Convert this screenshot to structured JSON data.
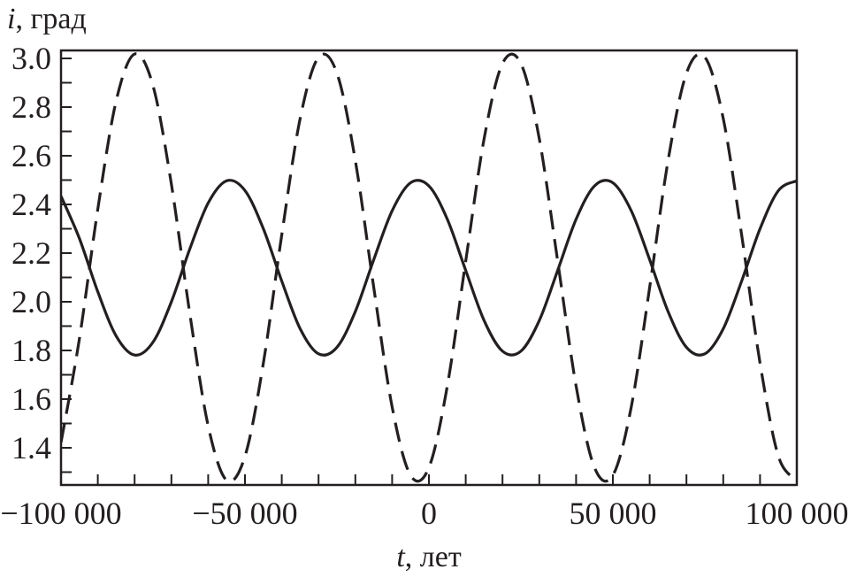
{
  "chart_data": {
    "type": "line",
    "title": "",
    "ylabel": {
      "var": "i",
      "unit": ", град"
    },
    "xlabel": {
      "var": "t",
      "unit": ", лет"
    },
    "xlim": [
      -100000,
      100000
    ],
    "ylim": [
      1.25,
      3.03
    ],
    "grid": false,
    "legend": "none",
    "x_ticks": [
      -100000,
      -50000,
      0,
      50000,
      100000
    ],
    "x_tick_labels": [
      "−100 000",
      "−50 000",
      "0",
      "50 000",
      "100 000"
    ],
    "x_minor_step": 10000,
    "y_ticks": [
      1.4,
      1.6,
      1.8,
      2.0,
      2.2,
      2.4,
      2.6,
      2.8,
      3.0
    ],
    "y_tick_labels": [
      "1.4",
      "1.6",
      "1.8",
      "2.0",
      "2.2",
      "2.4",
      "2.6",
      "2.8",
      "3.0"
    ],
    "y_minor_step": 0.1,
    "x": [
      -100000,
      -95000,
      -90000,
      -85000,
      -80000,
      -75000,
      -70000,
      -65000,
      -60000,
      -55000,
      -50000,
      -45000,
      -40000,
      -35000,
      -30000,
      -25000,
      -20000,
      -15000,
      -10000,
      -5000,
      0,
      5000,
      10000,
      15000,
      20000,
      25000,
      30000,
      35000,
      40000,
      45000,
      50000,
      55000,
      60000,
      65000,
      70000,
      75000,
      80000,
      85000,
      90000,
      95000,
      100000
    ],
    "series": [
      {
        "name": "solid",
        "style": "solid",
        "color": "#231f20",
        "values": [
          2.434,
          2.26,
          2.041,
          1.859,
          1.781,
          1.834,
          2.0,
          2.217,
          2.406,
          2.497,
          2.457,
          2.3,
          2.085,
          1.889,
          1.786,
          1.813,
          1.96,
          2.173,
          2.374,
          2.489,
          2.476,
          2.339,
          2.129,
          1.923,
          1.797,
          1.797,
          1.923,
          2.129,
          2.339,
          2.476,
          2.489,
          2.374,
          2.173,
          1.96,
          1.813,
          1.786,
          1.889,
          2.085,
          2.3,
          2.457,
          2.497
        ]
      },
      {
        "name": "dashed",
        "style": "dashed",
        "color": "#231f20",
        "values": [
          1.422,
          1.848,
          2.381,
          2.826,
          3.018,
          2.888,
          2.483,
          1.952,
          1.49,
          1.267,
          1.365,
          1.748,
          2.275,
          2.753,
          3.005,
          2.939,
          2.58,
          2.059,
          1.568,
          1.287,
          1.319,
          1.654,
          2.167,
          2.67,
          2.979,
          2.979,
          2.67,
          2.167,
          1.654,
          1.319,
          1.287,
          1.568,
          2.059,
          2.58,
          2.939,
          3.005,
          2.753,
          2.275,
          1.748,
          1.365,
          1.267
        ]
      }
    ]
  }
}
